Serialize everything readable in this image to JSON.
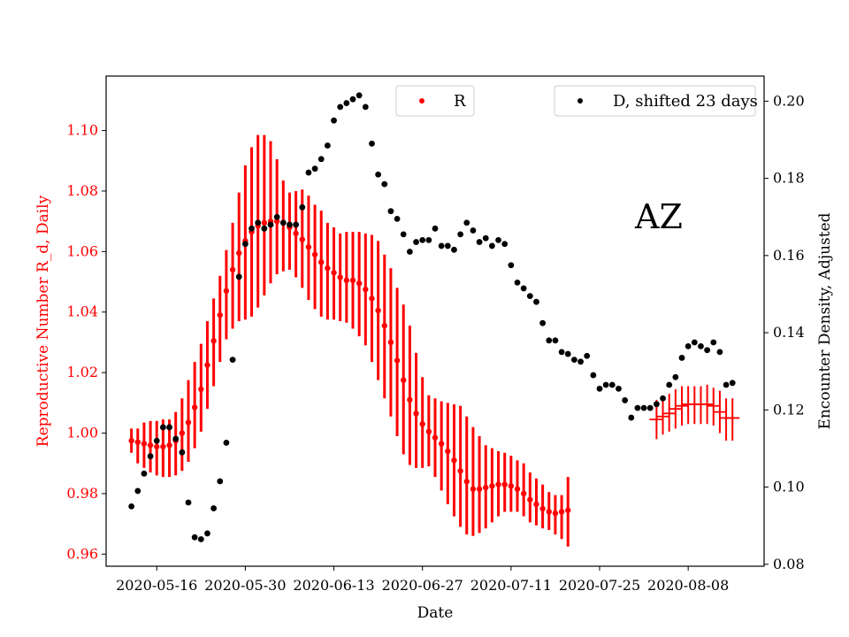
{
  "chart_data": {
    "type": "scatter",
    "annotation": "AZ",
    "xlabel": "Date",
    "ylabel_left": "Reproductive Number R_d, Daily",
    "ylabel_right": "Encounter Density, Adjusted",
    "x_ticks": [
      "2020-05-16",
      "2020-05-30",
      "2020-06-13",
      "2020-06-27",
      "2020-07-11",
      "2020-07-25",
      "2020-08-08"
    ],
    "y_left_ticks": [
      "0.96",
      "0.98",
      "1.00",
      "1.02",
      "1.04",
      "1.06",
      "1.08",
      "1.10"
    ],
    "y_right_ticks": [
      "0.08",
      "0.10",
      "0.12",
      "0.14",
      "0.16",
      "0.18",
      "0.20"
    ],
    "xlim": [
      "2020-05-08",
      "2020-08-20"
    ],
    "ylim_left": [
      0.956,
      1.118
    ],
    "ylim_right": [
      0.0795,
      0.2065
    ],
    "colors": {
      "R": "#ff0000",
      "D": "#000000",
      "left_axis": "#ff0000",
      "right_axis": "#000000"
    },
    "legend": [
      {
        "label": "R",
        "color": "#ff0000",
        "position": "top-center"
      },
      {
        "label": "D, shifted 23 days",
        "color": "#000000",
        "position": "top-right"
      }
    ],
    "series": [
      {
        "name": "R",
        "axis": "left",
        "marker": "dot-with-errorbars",
        "x_start": "2020-05-12",
        "values": [
          0.9975,
          0.997,
          0.9965,
          0.996,
          0.9955,
          0.9955,
          0.996,
          0.9975,
          1.0,
          1.0035,
          1.0085,
          1.0145,
          1.0225,
          1.0305,
          1.039,
          1.047,
          1.054,
          1.0595,
          1.0635,
          1.0665,
          1.0685,
          1.0695,
          1.07,
          1.07,
          1.0695,
          1.068,
          1.066,
          1.064,
          1.0615,
          1.059,
          1.0565,
          1.0545,
          1.053,
          1.0515,
          1.0505,
          1.0505,
          1.0495,
          1.0475,
          1.0445,
          1.0405,
          1.0355,
          1.03,
          1.024,
          1.0175,
          1.011,
          1.0065,
          1.003,
          1.0005,
          0.9985,
          0.9965,
          0.994,
          0.991,
          0.9875,
          0.984,
          0.9815,
          0.9815,
          0.982,
          0.9825,
          0.983,
          0.983,
          0.9825,
          0.9815,
          0.98,
          0.978,
          0.9765,
          0.975,
          0.974,
          0.9735,
          0.974,
          0.9745,
          null,
          null,
          null,
          null,
          null,
          null,
          null,
          null,
          null,
          null
        ],
        "err_low": [
          0.9935,
          0.99,
          0.9885,
          0.987,
          0.986,
          0.9855,
          0.9855,
          0.986,
          0.9875,
          0.9905,
          0.995,
          1.0005,
          1.008,
          1.0155,
          1.0235,
          1.031,
          1.0345,
          1.037,
          1.0375,
          1.0385,
          1.0415,
          1.0455,
          1.0495,
          1.0525,
          1.0535,
          1.054,
          1.0515,
          1.048,
          1.044,
          1.041,
          1.0385,
          1.0375,
          1.0375,
          1.037,
          1.0365,
          1.0345,
          1.032,
          1.029,
          1.0235,
          1.0175,
          1.0115,
          1.0055,
          0.999,
          0.993,
          0.9895,
          0.9885,
          0.9885,
          0.989,
          0.9855,
          0.981,
          0.9765,
          0.9725,
          0.969,
          0.9665,
          0.966,
          0.967,
          0.9685,
          0.9705,
          0.9725,
          0.974,
          0.974,
          0.974,
          0.9725,
          0.9705,
          0.9695,
          0.9685,
          0.968,
          0.9665,
          0.965,
          0.9625,
          null,
          null,
          null,
          null,
          null,
          null,
          null,
          null,
          null,
          null
        ],
        "err_high": [
          1.0015,
          1.0015,
          1.0035,
          1.004,
          1.004,
          1.0045,
          1.0045,
          1.007,
          1.0115,
          1.0175,
          1.0235,
          1.0295,
          1.037,
          1.0445,
          1.052,
          1.0605,
          1.0695,
          1.0795,
          1.0885,
          1.0945,
          1.0985,
          1.0985,
          1.0965,
          1.0905,
          1.0835,
          1.0795,
          1.08,
          1.0805,
          1.0785,
          1.0755,
          1.0735,
          1.0695,
          1.068,
          1.066,
          1.0665,
          1.0665,
          1.0665,
          1.066,
          1.0655,
          1.0635,
          1.059,
          1.0545,
          1.048,
          1.0425,
          1.0355,
          1.0265,
          1.0185,
          1.0125,
          1.0115,
          1.0105,
          1.01,
          1.0095,
          1.009,
          1.0055,
          1.002,
          0.999,
          0.996,
          0.995,
          0.994,
          0.9935,
          0.9925,
          0.991,
          0.99,
          0.987,
          0.985,
          0.983,
          0.9805,
          0.9795,
          0.9795,
          0.9855,
          null,
          null,
          null,
          null,
          null,
          null,
          null,
          null,
          null,
          null
        ],
        "tail": {
          "x_start": "2020-08-03",
          "values": [
            1.0045,
            1.0055,
            1.0065,
            1.008,
            1.009,
            1.0095,
            1.0095,
            1.0095,
            1.0095,
            1.009,
            1.007,
            1.005,
            1.005
          ],
          "err_low": [
            0.998,
            0.9995,
            1.0005,
            1.0015,
            1.0025,
            1.003,
            1.003,
            1.003,
            1.003,
            1.0025,
            1.0,
            0.9975,
            0.9975
          ],
          "err_high": [
            1.011,
            1.0115,
            1.013,
            1.0145,
            1.0155,
            1.0155,
            1.0155,
            1.0155,
            1.016,
            1.015,
            1.014,
            1.0115,
            1.0115
          ]
        }
      },
      {
        "name": "D, shifted 23 days",
        "axis": "right",
        "marker": "dot",
        "x_start": "2020-05-12",
        "values": [
          0.095,
          0.099,
          0.1035,
          0.108,
          0.112,
          0.1155,
          0.1155,
          0.1125,
          0.109,
          0.096,
          0.087,
          0.0865,
          0.088,
          0.0945,
          0.1015,
          0.1115,
          0.133,
          0.1545,
          0.163,
          0.167,
          0.1685,
          0.167,
          0.168,
          0.17,
          0.1685,
          0.168,
          0.168,
          0.1725,
          0.1815,
          0.1825,
          0.185,
          0.1885,
          0.195,
          0.1985,
          0.1995,
          0.2005,
          0.2015,
          0.1985,
          0.189,
          0.181,
          0.1785,
          0.1715,
          0.1695,
          0.1655,
          0.161,
          0.1635,
          0.164,
          0.164,
          0.167,
          0.1625,
          0.1625,
          0.1615,
          0.1655,
          0.1685,
          0.1665,
          0.1635,
          0.1645,
          0.1625,
          0.164,
          0.163,
          0.1575,
          0.153,
          0.1515,
          0.1495,
          0.148,
          0.1425,
          0.138,
          0.138,
          0.135,
          0.1345,
          0.133,
          0.1325,
          0.134,
          0.129,
          0.1255,
          0.1265,
          0.1265,
          0.1255,
          0.1225,
          0.118,
          0.1205,
          0.1205,
          0.1205,
          0.1215,
          0.123,
          0.1265,
          0.1285,
          0.1335,
          0.1365,
          0.1375,
          0.1365,
          0.1355,
          0.1375,
          0.135,
          0.1265,
          0.127
        ]
      }
    ]
  }
}
